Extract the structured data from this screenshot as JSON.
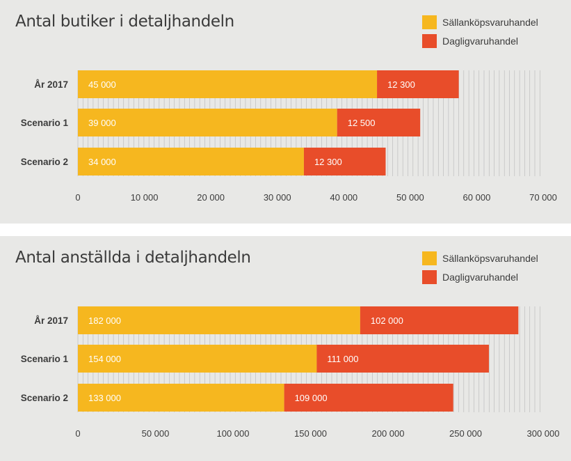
{
  "colors": {
    "sallan": "#f6b71f",
    "daglig": "#e84d2a",
    "text": "#3b3b3b",
    "grid": "#bdbdbd"
  },
  "chart_data": [
    {
      "type": "bar",
      "orientation": "horizontal",
      "stacked": true,
      "title": "Antal butiker i detaljhandeln",
      "categories": [
        "År 2017",
        "Scenario 1",
        "Scenario 2"
      ],
      "series": [
        {
          "name": "Sällanköpsvaruhandel",
          "values": [
            45000,
            39000,
            34000
          ],
          "labels": [
            "45 000",
            "39 000",
            "34 000"
          ]
        },
        {
          "name": "Dagligvaruhandel",
          "values": [
            12300,
            12500,
            12300
          ],
          "labels": [
            "12 300",
            "12 500",
            "12 300"
          ]
        }
      ],
      "xlim": [
        0,
        70000
      ],
      "xticks": [
        0,
        10000,
        20000,
        30000,
        40000,
        50000,
        60000,
        70000
      ],
      "xtick_labels": [
        "0",
        "10 000",
        "20 000",
        "30 000",
        "40 000",
        "50 000",
        "60 000",
        "70 000"
      ],
      "grid": true,
      "legend": "top-right"
    },
    {
      "type": "bar",
      "orientation": "horizontal",
      "stacked": true,
      "title": "Antal anställda i detaljhandeln",
      "categories": [
        "År 2017",
        "Scenario 1",
        "Scenario 2"
      ],
      "series": [
        {
          "name": "Sällanköpsvaruhandel",
          "values": [
            182000,
            154000,
            133000
          ],
          "labels": [
            "182 000",
            "154 000",
            "133 000"
          ]
        },
        {
          "name": "Dagligvaruhandel",
          "values": [
            102000,
            111000,
            109000
          ],
          "labels": [
            "102 000",
            "111 000",
            "109 000"
          ]
        }
      ],
      "xlim": [
        0,
        300000
      ],
      "xticks": [
        0,
        50000,
        100000,
        150000,
        200000,
        250000,
        300000
      ],
      "xtick_labels": [
        "0",
        "50 000",
        "100 000",
        "150 000",
        "200 000",
        "250 000",
        "300 000"
      ],
      "grid": true,
      "legend": "top-right"
    }
  ]
}
